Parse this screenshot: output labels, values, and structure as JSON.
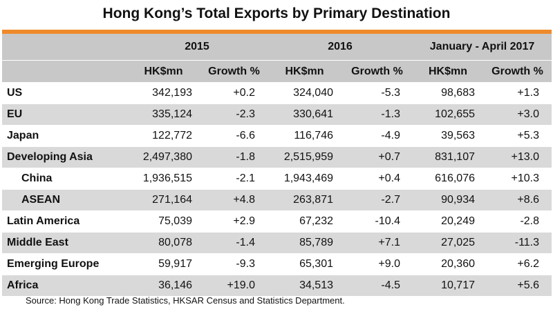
{
  "title": "Hong Kong’s Total Exports by Primary Destination",
  "periods": [
    "2015",
    "2016",
    "January - April 2017"
  ],
  "subheaders": [
    "HK$mn",
    "Growth %",
    "HK$mn",
    "Growth %",
    "HK$mn",
    "Growth %"
  ],
  "rows": [
    {
      "label": "US",
      "values": [
        "342,193",
        "+0.2",
        "324,040",
        "-5.3",
        "98,683",
        "+1.3"
      ]
    },
    {
      "label": "EU",
      "values": [
        "335,124",
        "-2.3",
        "330,641",
        "-1.3",
        "102,655",
        "+3.0"
      ]
    },
    {
      "label": "Japan",
      "values": [
        "122,772",
        "-6.6",
        "116,746",
        "-4.9",
        "39,563",
        "+5.3"
      ]
    },
    {
      "label": "Developing Asia",
      "values": [
        "2,497,380",
        "-1.8",
        "2,515,959",
        "+0.7",
        "831,107",
        "+13.0"
      ]
    },
    {
      "label": "China",
      "values": [
        "1,936,515",
        "-2.1",
        "1,943,469",
        "+0.4",
        "616,076",
        "+10.3"
      ]
    },
    {
      "label": "ASEAN",
      "values": [
        "271,164",
        "+4.8",
        "263,871",
        "-2.7",
        "90,934",
        "+8.6"
      ]
    },
    {
      "label": "Latin America",
      "values": [
        "75,039",
        "+2.9",
        "67,232",
        "-10.4",
        "20,249",
        "-2.8"
      ]
    },
    {
      "label": "Middle East",
      "values": [
        "80,078",
        "-1.4",
        "85,789",
        "+7.1",
        "27,025",
        "-11.3"
      ]
    },
    {
      "label": "Emerging Europe",
      "values": [
        "59,917",
        "-9.3",
        "65,301",
        "+9.0",
        "20,360",
        "+6.2"
      ]
    },
    {
      "label": "Africa",
      "values": [
        "36,146",
        "+19.0",
        "34,513",
        "-4.5",
        "10,717",
        "+5.6"
      ]
    }
  ],
  "source": "Source: Hong Kong Trade Statistics, HKSAR Census and Statistics Department.",
  "colors": {
    "accent": "#ef8a2a",
    "header_bg": "#c8c8c8",
    "stripe": "#d9d9d9"
  }
}
